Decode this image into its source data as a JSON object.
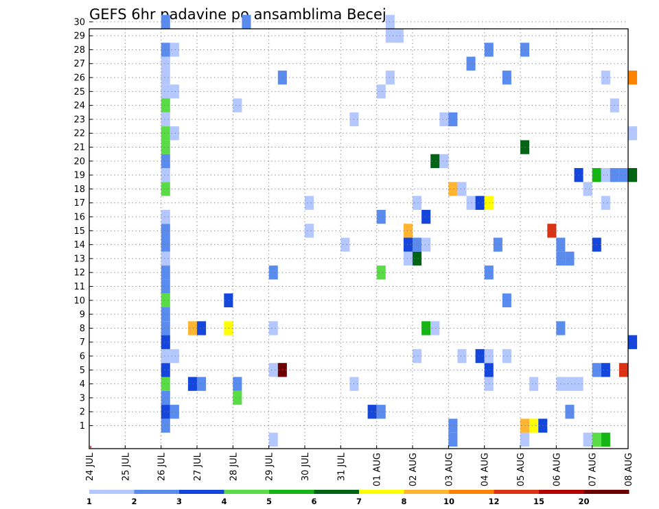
{
  "chart_data": {
    "type": "heatmap",
    "title": "GEFS 6hr padavine po ansamblima Becej",
    "x_tick_labels": [
      "24 JUL",
      "25 JUL",
      "26 JUL",
      "27 JUL",
      "28 JUL",
      "29 JUL",
      "30 JUL",
      "31 JUL",
      "01 AUG",
      "02 AUG",
      "03 AUG",
      "04 AUG",
      "05 AUG",
      "06 AUG",
      "07 AUG",
      "08 AUG"
    ],
    "y_tick_labels": [
      "1",
      "2",
      "3",
      "4",
      "5",
      "6",
      "7",
      "8",
      "9",
      "10",
      "11",
      "12",
      "13",
      "14",
      "15",
      "16",
      "17",
      "18",
      "19",
      "20",
      "21",
      "22",
      "23",
      "24",
      "25",
      "26",
      "27",
      "28",
      "29",
      "30"
    ],
    "time_steps_per_day": 4,
    "members": 30,
    "grid": true,
    "legend_placement": "bottom",
    "colorbar": {
      "boundaries": [
        "1",
        "2",
        "3",
        "4",
        "5",
        "6",
        "7",
        "8",
        "10",
        "12",
        "15",
        "20"
      ],
      "colors": [
        "#b4c8ff",
        "#5a8cf0",
        "#1446dc",
        "#5adc46",
        "#14b414",
        "#006414",
        "#ffff00",
        "#ffb432",
        "#ff8200",
        "#dc3214",
        "#b40000",
        "#6e0000"
      ]
    },
    "cells": [
      {
        "day": 2.0,
        "member": 1,
        "v": 2.5
      },
      {
        "day": 2.0,
        "member": 2,
        "v": 3.5
      },
      {
        "day": 2.0,
        "member": 3,
        "v": 2.5
      },
      {
        "day": 2.0,
        "member": 4,
        "v": 4.5
      },
      {
        "day": 2.0,
        "member": 5,
        "v": 3.5
      },
      {
        "day": 2.0,
        "member": 6,
        "v": 1.5
      },
      {
        "day": 2.0,
        "member": 7,
        "v": 3.5
      },
      {
        "day": 2.0,
        "member": 8,
        "v": 2.5
      },
      {
        "day": 2.0,
        "member": 9,
        "v": 2.5
      },
      {
        "day": 2.0,
        "member": 10,
        "v": 4.5
      },
      {
        "day": 2.0,
        "member": 11,
        "v": 2.5
      },
      {
        "day": 2.0,
        "member": 13,
        "v": 1.5
      },
      {
        "day": 2.0,
        "member": 14,
        "v": 2.5
      },
      {
        "day": 2.0,
        "member": 15,
        "v": 2.5
      },
      {
        "day": 2.0,
        "member": 16,
        "v": 1.5
      },
      {
        "day": 2.0,
        "member": 18,
        "v": 4.5
      },
      {
        "day": 2.0,
        "member": 19,
        "v": 1.5
      },
      {
        "day": 2.0,
        "member": 20,
        "v": 2.5
      },
      {
        "day": 2.0,
        "member": 21,
        "v": 4.5
      },
      {
        "day": 2.0,
        "member": 22,
        "v": 4.5
      },
      {
        "day": 2.0,
        "member": 23,
        "v": 1.5
      },
      {
        "day": 2.0,
        "member": 24,
        "v": 4.5
      },
      {
        "day": 2.0,
        "member": 25,
        "v": 1.5
      },
      {
        "day": 2.0,
        "member": 26,
        "v": 1.5
      },
      {
        "day": 2.0,
        "member": 27,
        "v": 1.5
      },
      {
        "day": 2.0,
        "member": 28,
        "v": 2.5
      },
      {
        "day": 2.0,
        "member": 30,
        "v": 2.5
      },
      {
        "day": 2.0,
        "member": 12,
        "v": 2.5
      },
      {
        "day": 2.25,
        "member": 2,
        "v": 2.5
      },
      {
        "day": 2.25,
        "member": 6,
        "v": 1.5
      },
      {
        "day": 2.25,
        "member": 22,
        "v": 1.5
      },
      {
        "day": 2.25,
        "member": 25,
        "v": 1.5
      },
      {
        "day": 2.25,
        "member": 28,
        "v": 1.5
      },
      {
        "day": 2.75,
        "member": 8,
        "v": 9
      },
      {
        "day": 3.0,
        "member": 8,
        "v": 3.5
      },
      {
        "day": 2.75,
        "member": 4,
        "v": 3.5
      },
      {
        "day": 3.0,
        "member": 4,
        "v": 2.5
      },
      {
        "day": 3.75,
        "member": 10,
        "v": 3.5
      },
      {
        "day": 3.75,
        "member": 8,
        "v": 7.5
      },
      {
        "day": 4.0,
        "member": 3,
        "v": 4.5
      },
      {
        "day": 4.0,
        "member": 4,
        "v": 2.5
      },
      {
        "day": 4.0,
        "member": 24,
        "v": 1.5
      },
      {
        "day": 4.25,
        "member": 30,
        "v": 2.5
      },
      {
        "day": 5.0,
        "member": 0,
        "v": 1.5
      },
      {
        "day": 5.0,
        "member": 5,
        "v": 1.5
      },
      {
        "day": 5.0,
        "member": 8,
        "v": 1.5
      },
      {
        "day": 5.0,
        "member": 12,
        "v": 2.5
      },
      {
        "day": 5.25,
        "member": 5,
        "v": 25
      },
      {
        "day": 5.25,
        "member": 26,
        "v": 2.5
      },
      {
        "day": 6.0,
        "member": 15,
        "v": 1.5
      },
      {
        "day": 6.0,
        "member": 17,
        "v": 1.5
      },
      {
        "day": 7.0,
        "member": 14,
        "v": 1.5
      },
      {
        "day": 7.25,
        "member": 4,
        "v": 1.5
      },
      {
        "day": 7.25,
        "member": 23,
        "v": 1.5
      },
      {
        "day": 7.75,
        "member": 2,
        "v": 3.5
      },
      {
        "day": 8.0,
        "member": 2,
        "v": 2.5
      },
      {
        "day": 8.0,
        "member": 12,
        "v": 4.5
      },
      {
        "day": 8.0,
        "member": 16,
        "v": 2.5
      },
      {
        "day": 8.0,
        "member": 25,
        "v": 1.5
      },
      {
        "day": 8.25,
        "member": 26,
        "v": 1.5
      },
      {
        "day": 8.25,
        "member": 29,
        "v": 1.5
      },
      {
        "day": 8.25,
        "member": 30,
        "v": 1.5
      },
      {
        "day": 8.5,
        "member": 29,
        "v": 1.5
      },
      {
        "day": 8.75,
        "member": 13,
        "v": 1.5
      },
      {
        "day": 8.75,
        "member": 14,
        "v": 3.5
      },
      {
        "day": 8.75,
        "member": 15,
        "v": 9
      },
      {
        "day": 9.0,
        "member": 6,
        "v": 1.5
      },
      {
        "day": 9.0,
        "member": 13,
        "v": 6.5
      },
      {
        "day": 9.0,
        "member": 14,
        "v": 2.5
      },
      {
        "day": 9.0,
        "member": 17,
        "v": 1.5
      },
      {
        "day": 9.25,
        "member": 14,
        "v": 1.5
      },
      {
        "day": 9.25,
        "member": 16,
        "v": 3.5
      },
      {
        "day": 9.25,
        "member": 8,
        "v": 5.5
      },
      {
        "day": 9.5,
        "member": 8,
        "v": 1.5
      },
      {
        "day": 9.5,
        "member": 20,
        "v": 6.5
      },
      {
        "day": 9.75,
        "member": 20,
        "v": 1.5
      },
      {
        "day": 9.75,
        "member": 23,
        "v": 1.5
      },
      {
        "day": 10.0,
        "member": 0,
        "v": 2.5
      },
      {
        "day": 10.0,
        "member": 1,
        "v": 2.5
      },
      {
        "day": 10.0,
        "member": 18,
        "v": 9
      },
      {
        "day": 10.0,
        "member": 23,
        "v": 2.5
      },
      {
        "day": 10.25,
        "member": 6,
        "v": 1.5
      },
      {
        "day": 10.25,
        "member": 18,
        "v": 1.5
      },
      {
        "day": 10.5,
        "member": 27,
        "v": 2.5
      },
      {
        "day": 10.5,
        "member": 17,
        "v": 1.5
      },
      {
        "day": 10.75,
        "member": 6,
        "v": 3.5
      },
      {
        "day": 10.75,
        "member": 17,
        "v": 3.5
      },
      {
        "day": 11.0,
        "member": 4,
        "v": 1.5
      },
      {
        "day": 11.0,
        "member": 5,
        "v": 3.5
      },
      {
        "day": 11.0,
        "member": 6,
        "v": 1.5
      },
      {
        "day": 11.0,
        "member": 12,
        "v": 2.5
      },
      {
        "day": 11.0,
        "member": 17,
        "v": 7.5
      },
      {
        "day": 11.0,
        "member": 28,
        "v": 2.5
      },
      {
        "day": 11.25,
        "member": 14,
        "v": 2.5
      },
      {
        "day": 11.5,
        "member": 6,
        "v": 1.5
      },
      {
        "day": 11.5,
        "member": 10,
        "v": 2.5
      },
      {
        "day": 11.5,
        "member": 26,
        "v": 2.5
      },
      {
        "day": 12.0,
        "member": 0,
        "v": 1.5
      },
      {
        "day": 12.0,
        "member": 1,
        "v": 9
      },
      {
        "day": 12.0,
        "member": 21,
        "v": 6.5
      },
      {
        "day": 12.0,
        "member": 28,
        "v": 2.5
      },
      {
        "day": 12.25,
        "member": 1,
        "v": 7.5
      },
      {
        "day": 12.25,
        "member": 4,
        "v": 1.5
      },
      {
        "day": 12.5,
        "member": 1,
        "v": 3.5
      },
      {
        "day": 12.75,
        "member": 15,
        "v": 13
      },
      {
        "day": 13.0,
        "member": 4,
        "v": 1.5
      },
      {
        "day": 13.0,
        "member": 8,
        "v": 2.5
      },
      {
        "day": 13.0,
        "member": 13,
        "v": 2.5
      },
      {
        "day": 13.0,
        "member": 14,
        "v": 2.5
      },
      {
        "day": 13.25,
        "member": 4,
        "v": 1.5
      },
      {
        "day": 13.25,
        "member": 2,
        "v": 2.5
      },
      {
        "day": 13.25,
        "member": 13,
        "v": 2.5
      },
      {
        "day": 13.5,
        "member": 4,
        "v": 1.5
      },
      {
        "day": 13.5,
        "member": 19,
        "v": 3.5
      },
      {
        "day": 13.75,
        "member": 0,
        "v": 1.5
      },
      {
        "day": 13.75,
        "member": 18,
        "v": 1.5
      },
      {
        "day": 14.0,
        "member": 5,
        "v": 2.5
      },
      {
        "day": 14.0,
        "member": 14,
        "v": 3.5
      },
      {
        "day": 14.0,
        "member": 19,
        "v": 5.5
      },
      {
        "day": 14.0,
        "member": 0,
        "v": 4.5
      },
      {
        "day": 14.25,
        "member": 5,
        "v": 3.5
      },
      {
        "day": 14.25,
        "member": 0,
        "v": 5.5
      },
      {
        "day": 14.25,
        "member": 17,
        "v": 1.5
      },
      {
        "day": 14.25,
        "member": 19,
        "v": 1.5
      },
      {
        "day": 14.25,
        "member": 26,
        "v": 1.5
      },
      {
        "day": 14.5,
        "member": 24,
        "v": 1.5
      },
      {
        "day": 14.5,
        "member": 19,
        "v": 2.5
      },
      {
        "day": 14.75,
        "member": 5,
        "v": 13
      },
      {
        "day": 14.75,
        "member": 19,
        "v": 2.5
      },
      {
        "day": 15.0,
        "member": 7,
        "v": 3.5
      },
      {
        "day": 15.0,
        "member": 19,
        "v": 6.5
      },
      {
        "day": 15.0,
        "member": 22,
        "v": 1.5
      },
      {
        "day": 15.0,
        "member": 26,
        "v": 11
      }
    ]
  }
}
